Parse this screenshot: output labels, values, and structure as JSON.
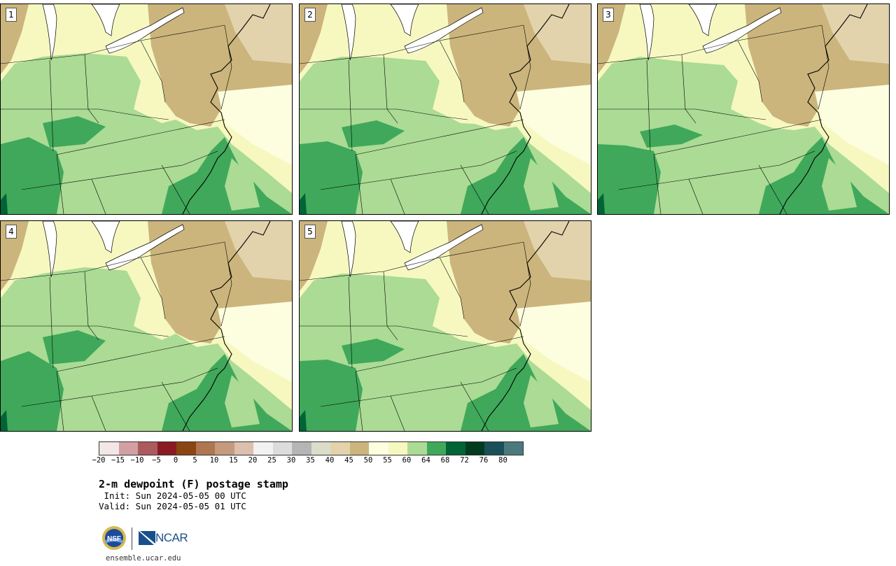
{
  "panels": [
    {
      "label": "1"
    },
    {
      "label": "2"
    },
    {
      "label": "3"
    },
    {
      "label": "4"
    },
    {
      "label": "5"
    }
  ],
  "colorbar": {
    "colors": [
      "#f3e6e6",
      "#d2a0a3",
      "#ab5a5e",
      "#8b1a22",
      "#8b4513",
      "#b07650",
      "#c59a7e",
      "#dcbfae",
      "#f2f2f2",
      "#dcdcdc",
      "#b5b5b5",
      "#dcdccb",
      "#e2d3ad",
      "#cbb57c",
      "#fdfde0",
      "#f6f8c0",
      "#abdb94",
      "#40a85a",
      "#016436",
      "#003a1f",
      "#1b5059",
      "#4b7a7e"
    ],
    "tick_labels": [
      "−20",
      "−15",
      "−10",
      "−5",
      "0",
      "5",
      "10",
      "15",
      "20",
      "25",
      "30",
      "35",
      "40",
      "45",
      "50",
      "55",
      "60",
      "64",
      "68",
      "72",
      "76",
      "80"
    ]
  },
  "title": "2-m dewpoint (F) postage stamp",
  "init": " Init: Sun 2024-05-05 00 UTC",
  "valid": "Valid: Sun 2024-05-05 01 UTC",
  "logo": {
    "nsf_text": "NSF",
    "ncar_text": "NCAR"
  },
  "url": "ensemble.ucar.edu",
  "map_colors": {
    "tan_dark": "#cbb57c",
    "tan_light": "#e2d3ad",
    "pale_yellow": "#fdfde0",
    "yellow": "#f6f8c0",
    "light_green": "#abdb94",
    "green": "#40a85a",
    "dark_green": "#016436"
  }
}
